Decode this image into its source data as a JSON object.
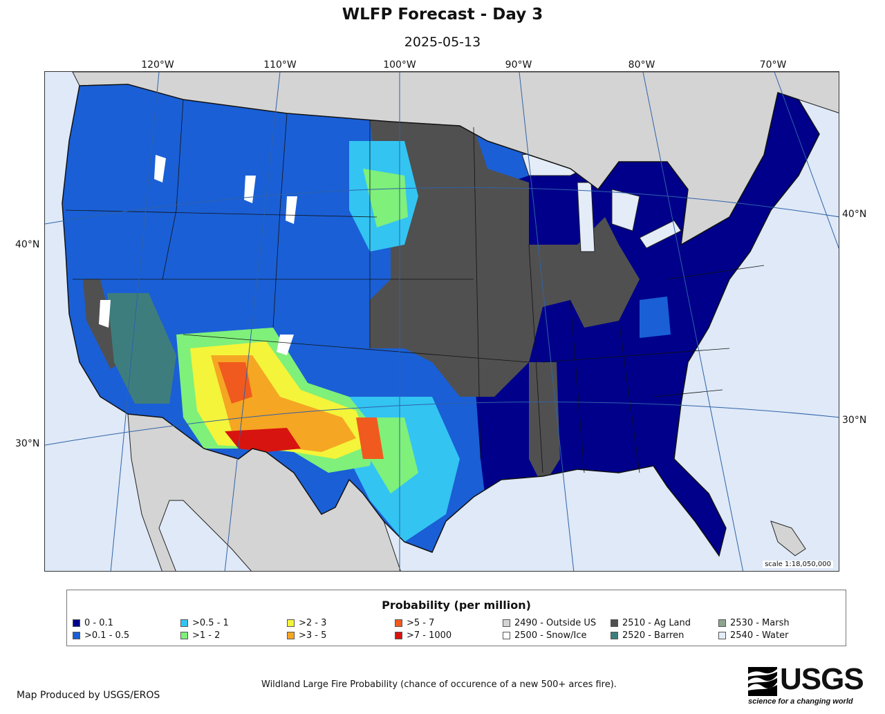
{
  "title": "WLFP Forecast - Day 3",
  "date": "2025-05-13",
  "longitude_labels": [
    "120°W",
    "110°W",
    "100°W",
    "90°W",
    "80°W",
    "70°W"
  ],
  "latitude_labels_left": [
    "40°N",
    "30°N"
  ],
  "latitude_labels_right": [
    "40°N",
    "30°N"
  ],
  "scale": "scale 1:18,050,000",
  "legend": {
    "title": "Probability (per million)",
    "items": [
      {
        "label": "0 - 0.1",
        "color": "#00008b"
      },
      {
        "label": ">0.1 - 0.5",
        "color": "#1a5fd6"
      },
      {
        "label": ">0.5 - 1",
        "color": "#33c4f2"
      },
      {
        "label": ">1 - 2",
        "color": "#7ff07a"
      },
      {
        "label": ">2 - 3",
        "color": "#f4f43a"
      },
      {
        "label": ">3 - 5",
        "color": "#f5a623"
      },
      {
        "label": ">5 - 7",
        "color": "#f05a1e"
      },
      {
        "label": ">7 - 1000",
        "color": "#d7140f"
      },
      {
        "label": "2490 - Outside US",
        "color": "#d4d4d4"
      },
      {
        "label": "2500 - Snow/Ice",
        "color": "#ffffff"
      },
      {
        "label": "2510 - Ag Land",
        "color": "#505050"
      },
      {
        "label": "2520 - Barren",
        "color": "#3e7d7d"
      },
      {
        "label": "2530 - Marsh",
        "color": "#8ea48e"
      },
      {
        "label": "2540 - Water",
        "color": "#e4ecf8"
      }
    ]
  },
  "caption": "Wildland Large Fire Probability (chance of occurence of a new 500+ arces fire).",
  "producer": "Map Produced by USGS/EROS",
  "logo": {
    "text": "USGS",
    "tagline": "science for a changing world"
  }
}
